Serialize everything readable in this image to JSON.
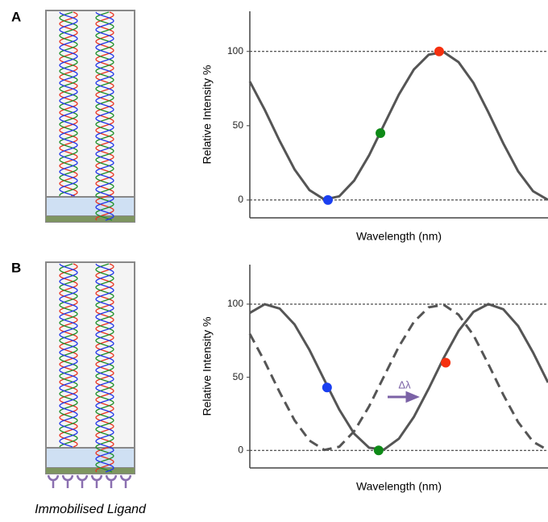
{
  "chart_data": [
    {
      "type": "line",
      "panel": "A",
      "ylabel": "Relative Intensity %",
      "xlabel": "Wavelength (nm)",
      "xlim": [
        0,
        100
      ],
      "ylim": [
        -12,
        127
      ],
      "yticks": [
        0,
        50,
        100
      ],
      "reference_lines": [
        0,
        100
      ],
      "series": [
        {
          "color": "#555555",
          "dashed": false,
          "x": [
            0,
            5,
            10,
            15,
            20,
            25,
            30,
            35,
            40,
            45,
            50,
            55,
            60,
            65,
            70,
            75,
            80,
            85,
            90,
            95,
            100
          ],
          "values": [
            79.7,
            60.7,
            39.8,
            20.6,
            6.7,
            0.3,
            2.5,
            13.1,
            30.1,
            50.6,
            71,
            87.8,
            97.8,
            99.6,
            92.8,
            78.8,
            59,
            38.1,
            19.3,
            5.9,
            0.1
          ]
        }
      ],
      "points": {
        "x": [
          26.2,
          43.8,
          63.5
        ],
        "values": [
          0,
          45,
          100
        ],
        "colors": [
          "#1a3ff0",
          "#0e8a17",
          "#f5300f"
        ]
      }
    },
    {
      "type": "line",
      "panel": "B",
      "ylabel": "Relative Intensity %",
      "xlabel": "Wavelength (nm)",
      "xlim": [
        0,
        100
      ],
      "ylim": [
        -12,
        127
      ],
      "yticks": [
        0,
        50,
        100
      ],
      "reference_lines": [
        0,
        100
      ],
      "series": [
        {
          "color": "#555555",
          "dashed": true,
          "x": [
            0,
            5,
            10,
            15,
            20,
            25,
            30,
            35,
            40,
            45,
            50,
            55,
            60,
            65,
            70,
            75,
            80,
            85,
            90,
            95,
            100
          ],
          "values": [
            79.7,
            60.7,
            39.8,
            20.6,
            6.7,
            0.3,
            2.5,
            13.1,
            30.1,
            50.6,
            71,
            87.8,
            97.8,
            99.6,
            92.8,
            78.8,
            59,
            38.1,
            19.3,
            5.9,
            0.1
          ]
        },
        {
          "color": "#555555",
          "dashed": false,
          "x": [
            0,
            5,
            10,
            15,
            20,
            25,
            30,
            35,
            40,
            45,
            50,
            55,
            60,
            65,
            70,
            75,
            80,
            85,
            90,
            95,
            100
          ],
          "values": [
            94,
            99.9,
            97,
            86.1,
            68.7,
            48.1,
            27.9,
            11.4,
            1.8,
            0.6,
            8,
            22.8,
            42.3,
            63.1,
            81.7,
            94.7,
            100,
            96.5,
            85,
            66.9,
            46.4
          ]
        }
      ],
      "points": {
        "x": [
          25.9,
          43.2,
          65.7
        ],
        "values": [
          43,
          0,
          60
        ],
        "colors": [
          "#1a3ff0",
          "#0e8a17",
          "#f5300f"
        ]
      },
      "shift_label": "Δλ",
      "ligand_label": "Immobilised Ligand"
    }
  ]
}
